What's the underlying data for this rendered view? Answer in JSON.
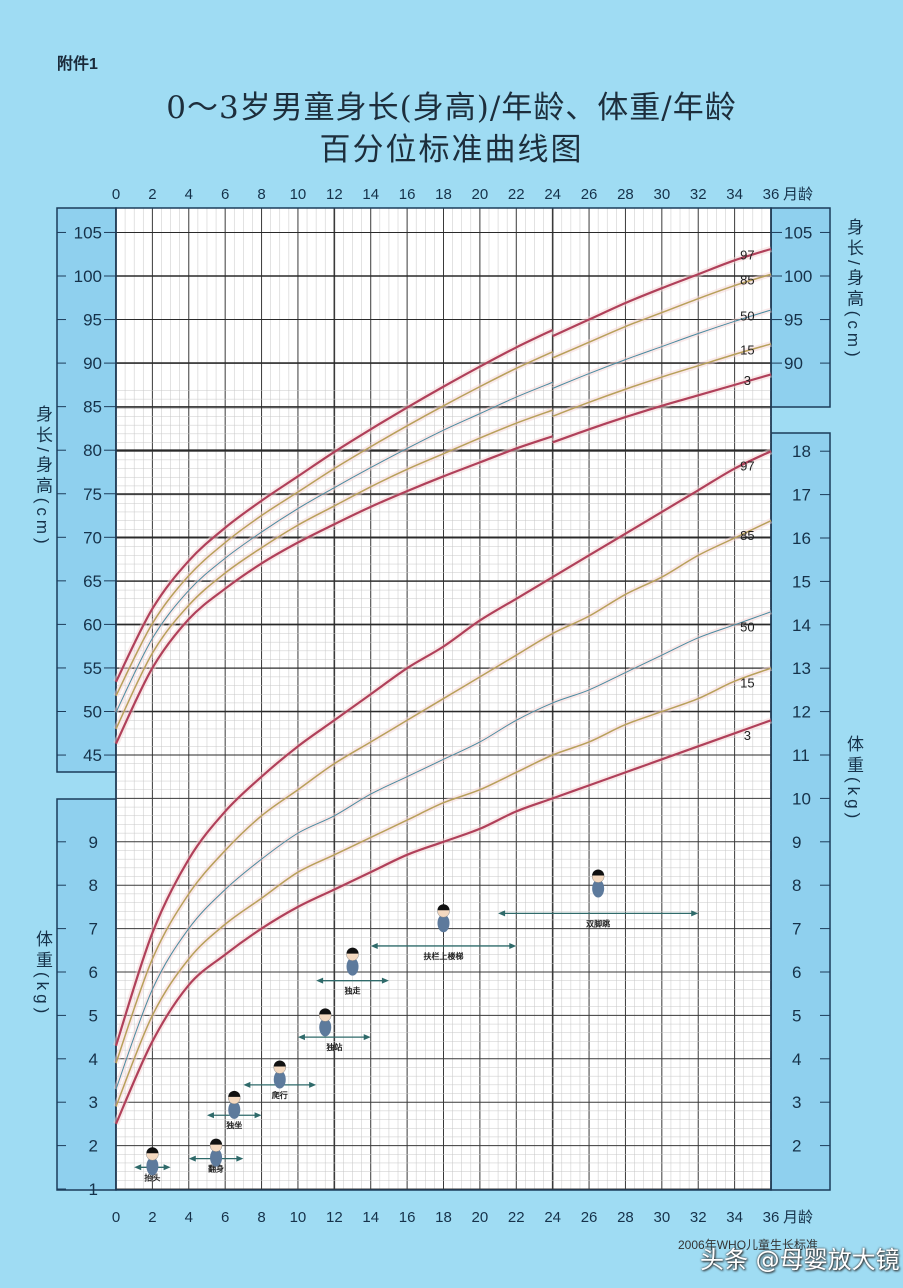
{
  "header": {
    "annex_label": "附件1",
    "title_line1": "0～3岁男童身长(身高)/年龄、体重/年龄",
    "title_line2": "百分位标准曲线图"
  },
  "axes": {
    "x_unit": "月龄",
    "x_ticks": [
      0,
      2,
      4,
      6,
      8,
      10,
      12,
      14,
      16,
      18,
      20,
      22,
      24,
      26,
      28,
      30,
      32,
      34,
      36
    ],
    "length_label": "身长/身高(cm)",
    "weight_label": "体重(kg)",
    "length_left_ticks": [
      105,
      100,
      95,
      90,
      85,
      80,
      75,
      70,
      65,
      60,
      55,
      50,
      45
    ],
    "length_right_ticks": [
      105,
      100,
      95,
      90
    ],
    "weight_right_ticks": [
      18,
      17,
      16,
      15,
      14,
      13,
      12,
      11,
      10,
      9,
      8,
      7,
      6,
      5,
      4,
      3,
      2
    ],
    "weight_left_ticks": [
      9,
      8,
      7,
      6,
      5,
      4,
      3,
      2,
      1
    ]
  },
  "footer": {
    "source": "2006年WHO儿童生长标准",
    "watermark": "头条 @母婴放大镜"
  },
  "colors": {
    "background": "#9fdcf3",
    "panel": "#8fd0ee",
    "grid_bg": "#ffffff",
    "p97_p3": "#b0405a",
    "p85_p15": "#b8a05a",
    "p50": "#4a8aa0"
  },
  "milestones": [
    {
      "label": "抬头",
      "from": 1,
      "to": 3,
      "weight_y": 1.5,
      "icon_age": 2,
      "icon_w": 1.8
    },
    {
      "label": "翻身",
      "from": 4,
      "to": 7,
      "weight_y": 1.7,
      "icon_age": 5.5,
      "icon_w": 2.0
    },
    {
      "label": "独坐",
      "from": 5,
      "to": 8,
      "weight_y": 2.7,
      "icon_age": 6.5,
      "icon_w": 3.1
    },
    {
      "label": "爬行",
      "from": 7,
      "to": 11,
      "weight_y": 3.4,
      "icon_age": 9,
      "icon_w": 3.8
    },
    {
      "label": "独站",
      "from": 10,
      "to": 14,
      "weight_y": 4.5,
      "icon_age": 11.5,
      "icon_w": 5.0
    },
    {
      "label": "独走",
      "from": 11,
      "to": 15,
      "weight_y": 5.8,
      "icon_age": 13,
      "icon_w": 6.4
    },
    {
      "label": "扶栏上楼梯",
      "from": 14,
      "to": 22,
      "weight_y": 6.6,
      "icon_age": 18,
      "icon_w": 7.4
    },
    {
      "label": "双脚跳",
      "from": 21,
      "to": 32,
      "weight_y": 7.35,
      "icon_age": 26.5,
      "icon_w": 8.2
    }
  ],
  "chart_data": [
    {
      "type": "line",
      "title": "0～3岁男童身长(身高)/年龄百分位标准曲线",
      "xlabel": "月龄",
      "ylabel": "身长/身高 (cm)",
      "ylim": [
        43,
        107
      ],
      "xlim": [
        0,
        36
      ],
      "grid": true,
      "legend_position": "right-end labels",
      "x": [
        0,
        2,
        4,
        6,
        8,
        10,
        12,
        14,
        16,
        18,
        20,
        22,
        24,
        24,
        26,
        28,
        30,
        32,
        34,
        36
      ],
      "series": [
        {
          "name": "97",
          "values": [
            53.4,
            61.8,
            67.3,
            71.1,
            74.2,
            77.0,
            79.8,
            82.4,
            84.9,
            87.3,
            89.6,
            91.8,
            93.8,
            93.1,
            95.0,
            96.9,
            98.6,
            100.2,
            101.8,
            103.1
          ]
        },
        {
          "name": "85",
          "values": [
            51.8,
            60.1,
            65.6,
            69.4,
            72.5,
            75.2,
            77.9,
            80.4,
            82.8,
            85.1,
            87.3,
            89.4,
            91.3,
            90.6,
            92.4,
            94.2,
            95.8,
            97.4,
            98.9,
            100.2
          ]
        },
        {
          "name": "50",
          "values": [
            49.9,
            58.4,
            63.9,
            67.6,
            70.6,
            73.3,
            75.7,
            78.0,
            80.2,
            82.3,
            84.2,
            86.1,
            87.8,
            87.1,
            88.8,
            90.4,
            91.9,
            93.4,
            94.8,
            96.1
          ]
        },
        {
          "name": "15",
          "values": [
            48.0,
            56.7,
            62.2,
            65.9,
            68.8,
            71.4,
            73.6,
            75.8,
            77.8,
            79.6,
            81.4,
            83.1,
            84.6,
            83.9,
            85.5,
            87.0,
            88.4,
            89.7,
            91.0,
            92.2
          ]
        },
        {
          "name": "3",
          "values": [
            46.3,
            55.0,
            60.6,
            64.1,
            67.0,
            69.4,
            71.5,
            73.5,
            75.3,
            77.0,
            78.6,
            80.2,
            81.6,
            80.9,
            82.4,
            83.8,
            85.1,
            86.3,
            87.5,
            88.7
          ]
        }
      ]
    },
    {
      "type": "line",
      "title": "0～3岁男童体重/年龄百分位标准曲线",
      "xlabel": "月龄",
      "ylabel": "体重 (kg)",
      "ylim": [
        1,
        18.4
      ],
      "xlim": [
        0,
        36
      ],
      "grid": true,
      "legend_position": "right-end labels",
      "x": [
        0,
        2,
        4,
        6,
        8,
        10,
        12,
        14,
        16,
        18,
        20,
        22,
        24,
        26,
        28,
        30,
        32,
        34,
        36
      ],
      "series": [
        {
          "name": "97",
          "values": [
            4.3,
            6.9,
            8.6,
            9.7,
            10.5,
            11.2,
            11.8,
            12.4,
            13.0,
            13.5,
            14.1,
            14.6,
            15.1,
            15.6,
            16.1,
            16.6,
            17.1,
            17.6,
            18.0
          ]
        },
        {
          "name": "85",
          "values": [
            3.9,
            6.3,
            7.8,
            8.8,
            9.6,
            10.2,
            10.8,
            11.3,
            11.8,
            12.3,
            12.8,
            13.3,
            13.8,
            14.2,
            14.7,
            15.1,
            15.6,
            16.0,
            16.4
          ]
        },
        {
          "name": "50",
          "values": [
            3.3,
            5.6,
            7.0,
            7.9,
            8.6,
            9.2,
            9.6,
            10.1,
            10.5,
            10.9,
            11.3,
            11.8,
            12.2,
            12.5,
            12.9,
            13.3,
            13.7,
            14.0,
            14.3
          ]
        },
        {
          "name": "15",
          "values": [
            2.9,
            5.0,
            6.3,
            7.1,
            7.7,
            8.3,
            8.7,
            9.1,
            9.5,
            9.9,
            10.2,
            10.6,
            11.0,
            11.3,
            11.7,
            12.0,
            12.3,
            12.7,
            13.0
          ]
        },
        {
          "name": "3",
          "values": [
            2.5,
            4.4,
            5.7,
            6.4,
            7.0,
            7.5,
            7.9,
            8.3,
            8.7,
            9.0,
            9.3,
            9.7,
            10.0,
            10.3,
            10.6,
            10.9,
            11.2,
            11.5,
            11.8
          ]
        }
      ]
    }
  ]
}
